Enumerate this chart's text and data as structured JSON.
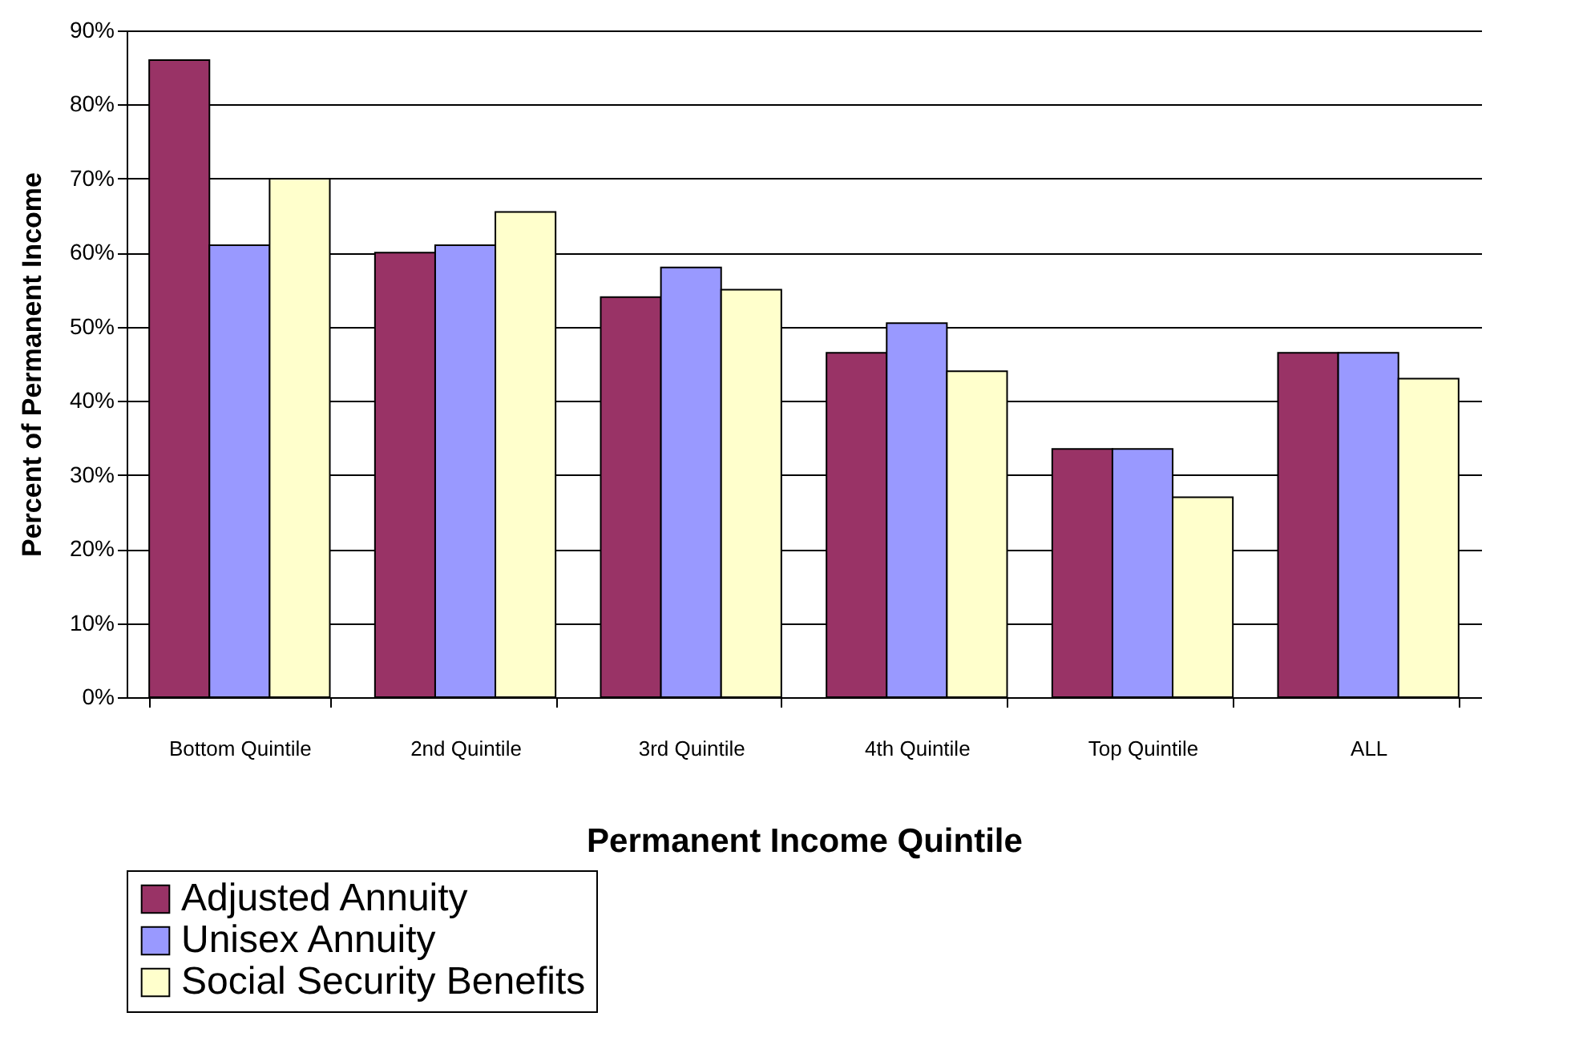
{
  "chart_data": {
    "type": "bar",
    "xlabel": "Permanent Income Quintile",
    "ylabel": "Percent of Permanent Income",
    "categories": [
      "Bottom Quintile",
      "2nd Quintile",
      "3rd Quintile",
      "4th Quintile",
      "Top Quintile",
      "ALL"
    ],
    "series": [
      {
        "name": "Adjusted Annuity",
        "color": "#993366",
        "values": [
          86,
          60,
          54,
          46.5,
          33.5,
          46.5
        ]
      },
      {
        "name": "Unisex Annuity",
        "color": "#9999ff",
        "values": [
          61,
          61,
          58,
          50.5,
          33.5,
          46.5
        ]
      },
      {
        "name": "Social Security Benefits",
        "color": "#ffffcc",
        "values": [
          70,
          65.5,
          55,
          44,
          27,
          43
        ]
      }
    ],
    "ylim": [
      0,
      90
    ],
    "yticks": [
      {
        "value": 0,
        "label": "0%"
      },
      {
        "value": 10,
        "label": "10%"
      },
      {
        "value": 20,
        "label": "20%"
      },
      {
        "value": 30,
        "label": "30%"
      },
      {
        "value": 40,
        "label": "40%"
      },
      {
        "value": 50,
        "label": "50%"
      },
      {
        "value": 60,
        "label": "60%"
      },
      {
        "value": 70,
        "label": "70%"
      },
      {
        "value": 80,
        "label": "80%"
      },
      {
        "value": 90,
        "label": "90%"
      }
    ],
    "grid": "y",
    "legend": "bottom"
  }
}
